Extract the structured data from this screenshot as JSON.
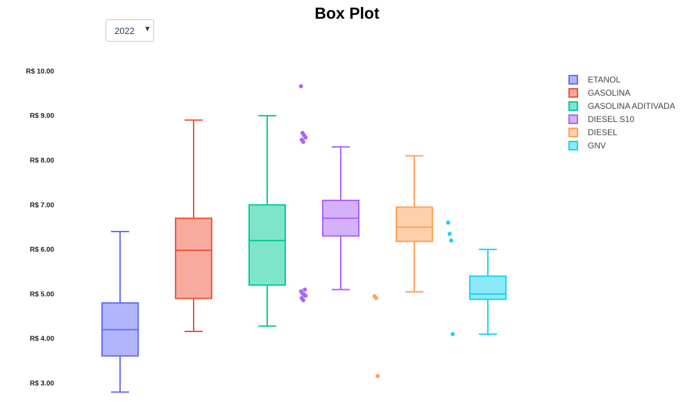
{
  "title": "Box Plot",
  "dropdown": {
    "selected": "2022",
    "arrow_icon": "triangle-down-icon"
  },
  "chart_data": {
    "type": "box",
    "title": "Box Plot",
    "xlabel": "",
    "ylabel": "",
    "ylim": [
      2.7,
      10.2
    ],
    "yticks": [
      3.0,
      4.0,
      5.0,
      6.0,
      7.0,
      8.0,
      9.0,
      10.0
    ],
    "ytick_labels": [
      "R$ 3.00",
      "R$ 4.00",
      "R$ 5.00",
      "R$ 6.00",
      "R$ 7.00",
      "R$ 8.00",
      "R$ 9.00",
      "R$ 10.00"
    ],
    "grid": false,
    "legend_position": "top-right",
    "series": [
      {
        "name": "ETANOL",
        "color": "#636efa",
        "min": 2.79,
        "q1": 3.6,
        "median": 4.19,
        "q3": 4.79,
        "max": 6.39,
        "outliers": []
      },
      {
        "name": "GASOLINA",
        "color": "#ef553b",
        "min": 4.15,
        "q1": 4.89,
        "median": 5.97,
        "q3": 6.69,
        "max": 8.89,
        "outliers": []
      },
      {
        "name": "GASOLINA ADITIVADA",
        "color": "#00cc96",
        "min": 4.27,
        "q1": 5.19,
        "median": 6.19,
        "q3": 6.99,
        "max": 8.99,
        "outliers": []
      },
      {
        "name": "DIESEL S10",
        "color": "#ab63fa",
        "min": 5.09,
        "q1": 6.29,
        "median": 6.69,
        "q3": 7.09,
        "max": 8.29,
        "outliers": [
          9.65,
          8.6,
          8.55,
          8.5,
          8.45,
          8.4,
          5.09,
          5.05,
          5.0,
          4.98,
          4.95,
          4.9,
          4.85
        ]
      },
      {
        "name": "DIESEL",
        "color": "#ffa15a",
        "min": 5.04,
        "q1": 6.17,
        "median": 6.49,
        "q3": 6.94,
        "max": 8.09,
        "outliers": [
          4.94,
          4.9,
          3.15
        ]
      },
      {
        "name": "GNV",
        "color": "#19d3f3",
        "min": 4.09,
        "q1": 4.87,
        "median": 4.99,
        "q3": 5.39,
        "max": 5.99,
        "outliers": [
          6.59,
          6.34,
          6.19,
          4.09
        ]
      }
    ]
  }
}
